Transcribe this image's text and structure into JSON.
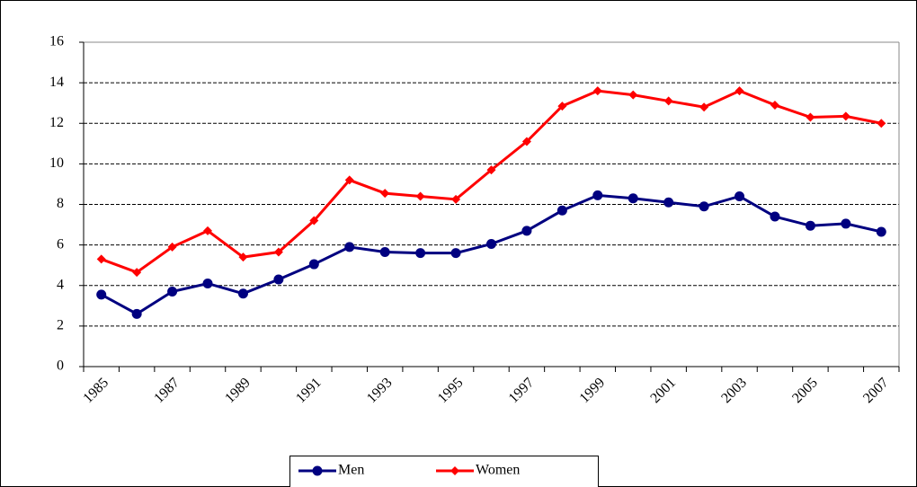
{
  "chart_data": {
    "type": "line",
    "categories": [
      "1985",
      null,
      "1987",
      null,
      "1989",
      null,
      "1991",
      null,
      "1993",
      null,
      "1995",
      null,
      "1997",
      null,
      "1999",
      null,
      "2001",
      null,
      "2003",
      null,
      "2005",
      null,
      "2007"
    ],
    "series": [
      {
        "name": "Men",
        "color": "#000080",
        "marker": "circle",
        "values": [
          3.55,
          2.6,
          3.7,
          4.1,
          3.6,
          4.3,
          5.05,
          5.9,
          5.65,
          5.6,
          5.6,
          6.05,
          6.7,
          7.7,
          8.45,
          8.3,
          8.1,
          7.9,
          8.4,
          7.4,
          6.95,
          7.05,
          6.65
        ]
      },
      {
        "name": "Women",
        "color": "#ff0000",
        "marker": "diamond",
        "values": [
          5.3,
          4.65,
          5.9,
          6.7,
          5.4,
          5.65,
          7.2,
          9.2,
          8.55,
          8.4,
          8.25,
          9.7,
          11.1,
          12.85,
          13.6,
          13.4,
          13.1,
          12.8,
          13.6,
          12.9,
          12.3,
          12.35,
          12.0
        ]
      }
    ],
    "ylim": [
      0,
      16
    ],
    "yticks": [
      0,
      2,
      4,
      6,
      8,
      10,
      12,
      14,
      16
    ],
    "grid": true,
    "legend": "bottom"
  }
}
